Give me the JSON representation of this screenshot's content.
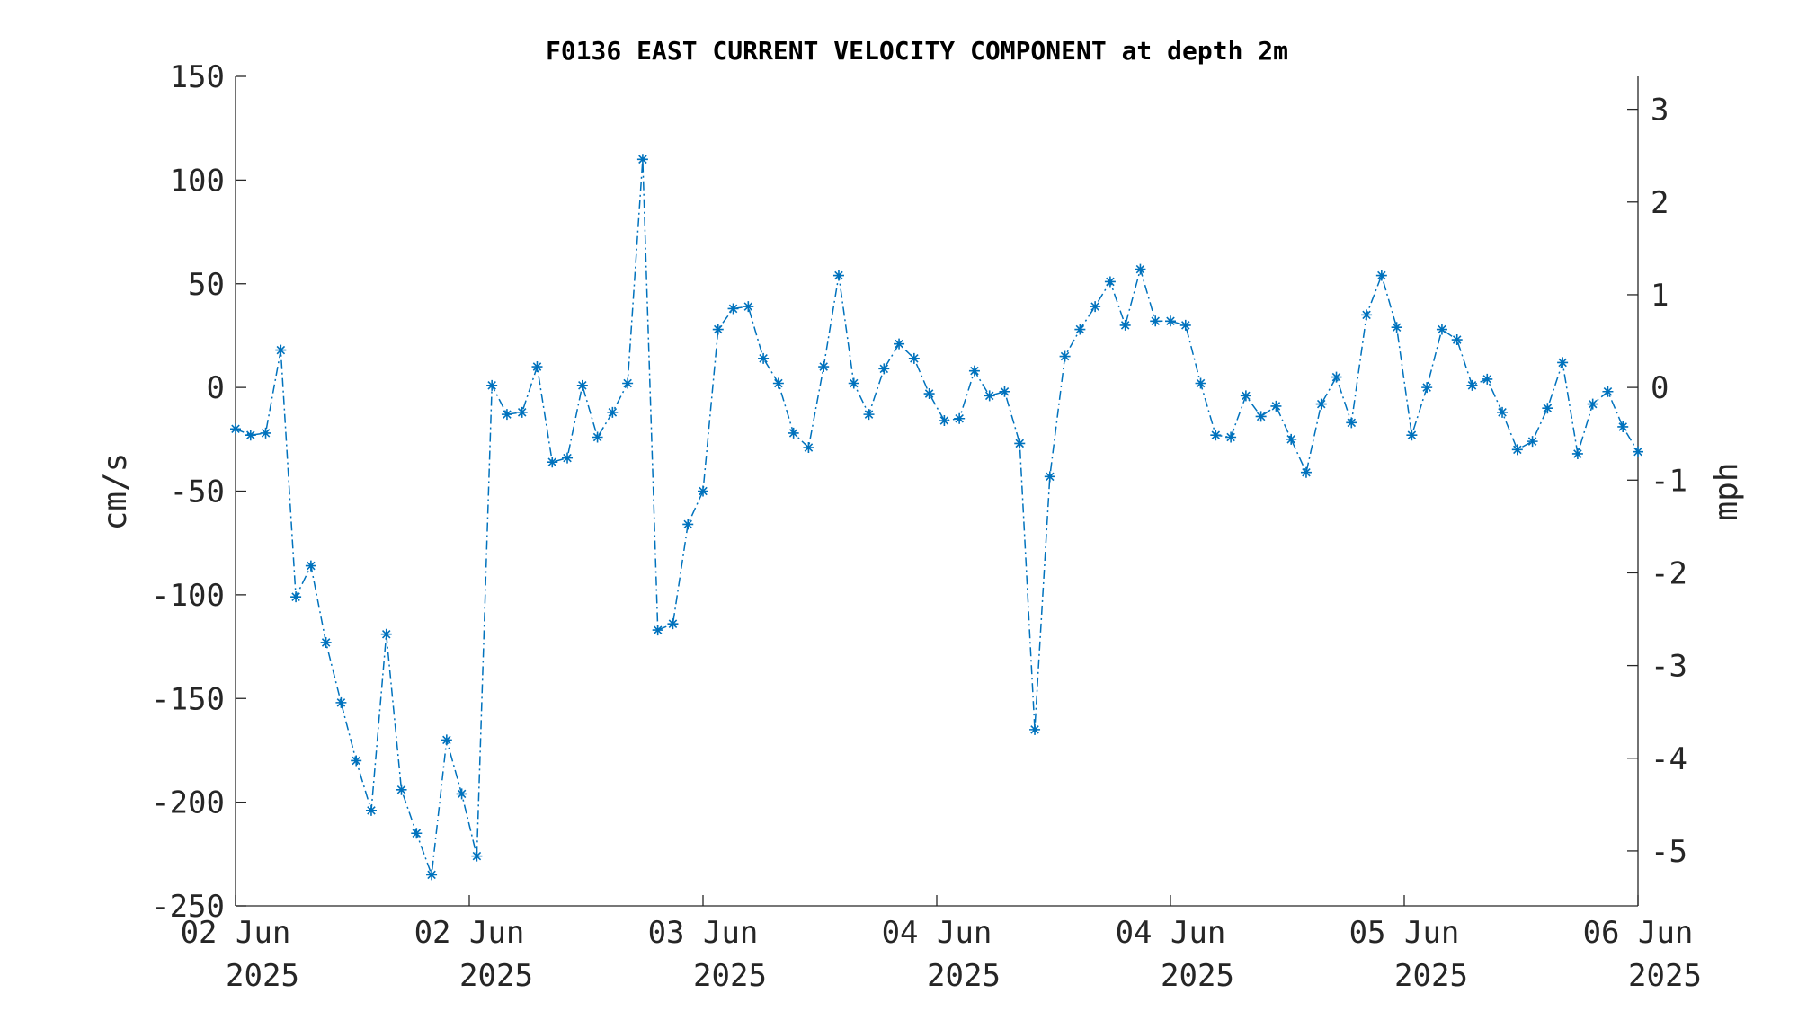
{
  "chart_data": {
    "type": "line",
    "title": "F0136 EAST CURRENT VELOCITY COMPONENT at depth 2m",
    "ylabel": "cm/s",
    "y2label": "mph",
    "ylim": [
      -250,
      150
    ],
    "y_ticks": [
      150,
      100,
      50,
      0,
      -50,
      -100,
      -150,
      -200,
      -250
    ],
    "y2lim": [
      -5.592,
      3.355
    ],
    "y2_ticks": [
      3,
      2,
      1,
      0,
      -1,
      -2,
      -3,
      -4,
      -5
    ],
    "xlim": [
      0,
      24
    ],
    "x_ticks": [
      {
        "x": 0,
        "line1": "02 Jun",
        "line2": "2025"
      },
      {
        "x": 4,
        "line1": "02 Jun",
        "line2": "2025"
      },
      {
        "x": 8,
        "line1": "03 Jun",
        "line2": "2025"
      },
      {
        "x": 12,
        "line1": "04 Jun",
        "line2": "2025"
      },
      {
        "x": 16,
        "line1": "04 Jun",
        "line2": "2025"
      },
      {
        "x": 20,
        "line1": "05 Jun",
        "line2": "2025"
      },
      {
        "x": 24,
        "line1": "06 Jun",
        "line2": "2025"
      }
    ],
    "colors": {
      "series": "#0072BD",
      "axis": "#262626"
    },
    "series": [
      {
        "marker": "asterisk",
        "line_style": "dash-dot",
        "values": [
          -20,
          -23,
          -22,
          18,
          -101,
          -86,
          -123,
          -152,
          -180,
          -204,
          -119,
          -194,
          -215,
          -235,
          -170,
          -196,
          -226,
          1,
          -13,
          -12,
          10,
          -36,
          -34,
          1,
          -24,
          -12,
          2,
          110,
          -117,
          -114,
          -66,
          -50,
          28,
          38,
          39,
          14,
          2,
          -22,
          -29,
          10,
          54,
          2,
          -13,
          9,
          21,
          14,
          -3,
          -16,
          -15,
          8,
          -4,
          -2,
          -27,
          -165,
          -43,
          15,
          28,
          39,
          51,
          30,
          57,
          32,
          32,
          30,
          2,
          -23,
          -24,
          -4,
          -14,
          -9,
          -25,
          -41,
          -8,
          5,
          -17,
          35,
          54,
          29,
          -23,
          0,
          28,
          23,
          1,
          4,
          -12,
          -30,
          -26,
          -10,
          12,
          -32,
          -8,
          -2,
          -19,
          -31
        ]
      }
    ]
  }
}
